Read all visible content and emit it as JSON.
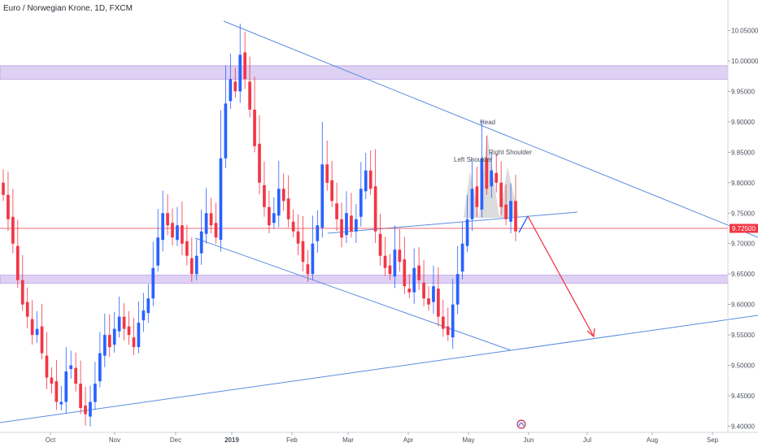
{
  "chart_data": {
    "type": "candlestick",
    "title": "Euro / Norwegian Krone, 1D, FXCM",
    "y_ticks": [
      "10.05000",
      "10.00000",
      "9.95000",
      "9.90000",
      "9.85000",
      "9.80000",
      "9.75000",
      "9.70000",
      "9.65000",
      "9.60000",
      "9.55000",
      "9.50000",
      "9.45000",
      "9.40000"
    ],
    "ylim": [
      9.39,
      10.1
    ],
    "x_ticks": [
      "Oct",
      "Nov",
      "Dec",
      "2019",
      "Feb",
      "Mar",
      "Apr",
      "May",
      "Jun",
      "Jul",
      "Aug",
      "Sep"
    ],
    "current_price": 9.725,
    "current_price_label": "9.72500",
    "colors": {
      "up": "#2962ff",
      "down": "#f23645",
      "zone": "#d7c6f0",
      "trend": "#5b8de0",
      "price_line": "#f23645"
    },
    "zones": [
      {
        "from": 9.97,
        "to": 9.992
      },
      {
        "from": 9.635,
        "to": 9.648
      }
    ],
    "closes": [
      9.78,
      9.74,
      9.7,
      9.64,
      9.6,
      9.58,
      9.55,
      9.56,
      9.52,
      9.48,
      9.47,
      9.44,
      9.44,
      9.49,
      9.5,
      9.47,
      9.43,
      9.42,
      9.44,
      9.47,
      9.52,
      9.55,
      9.53,
      9.56,
      9.58,
      9.56,
      9.55,
      9.53,
      9.57,
      9.59,
      9.61,
      9.66,
      9.71,
      9.75,
      9.73,
      9.71,
      9.73,
      9.7,
      9.68,
      9.65,
      9.68,
      9.72,
      9.75,
      9.73,
      9.71,
      9.84,
      9.93,
      9.97,
      9.95,
      10.01,
      9.97,
      9.92,
      9.86,
      9.8,
      9.76,
      9.73,
      9.75,
      9.79,
      9.77,
      9.74,
      9.72,
      9.7,
      9.67,
      9.65,
      9.7,
      9.73,
      9.83,
      9.8,
      9.77,
      9.74,
      9.71,
      9.75,
      9.72,
      9.74,
      9.79,
      9.82,
      9.79,
      9.72,
      9.68,
      9.66,
      9.65,
      9.69,
      9.67,
      9.63,
      9.62,
      9.66,
      9.64,
      9.61,
      9.6,
      9.63,
      9.58,
      9.56,
      9.55,
      9.6,
      9.65,
      9.7,
      9.74,
      9.79,
      9.76,
      9.84,
      9.79,
      9.82,
      9.8,
      9.76,
      9.74,
      9.77,
      9.72
    ]
  },
  "annotations": {
    "head": "Head",
    "left_shoulder": "Left Shoulder",
    "right_shoulder": "Right Shoulder"
  }
}
